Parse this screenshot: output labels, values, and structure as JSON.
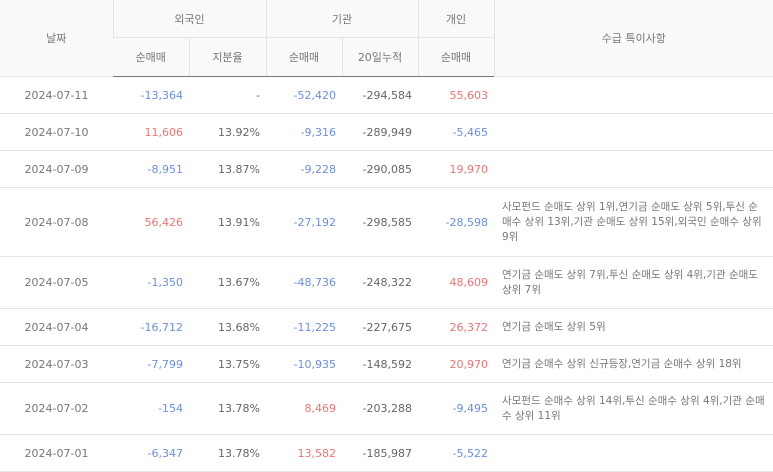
{
  "colors": {
    "negative": "#6b8fe0",
    "positive": "#ef7373"
  },
  "header": {
    "date": "날짜",
    "foreign": "외국인",
    "institution": "기관",
    "individual": "개인",
    "notes": "수급 특이사항",
    "net_buy": "순매매",
    "share_ratio": "지분율",
    "cumulative_20d": "20일누적"
  },
  "rows": [
    {
      "date": "2024-07-11",
      "foreign_net": "-13,364",
      "foreign_ratio": "-",
      "inst_net": "-52,420",
      "inst_cum": "-294,584",
      "indiv_net": "55,603",
      "note": ""
    },
    {
      "date": "2024-07-10",
      "foreign_net": "11,606",
      "foreign_ratio": "13.92%",
      "inst_net": "-9,316",
      "inst_cum": "-289,949",
      "indiv_net": "-5,465",
      "note": ""
    },
    {
      "date": "2024-07-09",
      "foreign_net": "-8,951",
      "foreign_ratio": "13.87%",
      "inst_net": "-9,228",
      "inst_cum": "-290,085",
      "indiv_net": "19,970",
      "note": ""
    },
    {
      "date": "2024-07-08",
      "foreign_net": "56,426",
      "foreign_ratio": "13.91%",
      "inst_net": "-27,192",
      "inst_cum": "-298,585",
      "indiv_net": "-28,598",
      "note": "사모펀드 순매도 상위 1위,연기금 순매도 상위 5위,투신 순매수 상위 13위,기관 순매도 상위 15위,외국인 순매수 상위 9위"
    },
    {
      "date": "2024-07-05",
      "foreign_net": "-1,350",
      "foreign_ratio": "13.67%",
      "inst_net": "-48,736",
      "inst_cum": "-248,322",
      "indiv_net": "48,609",
      "note": "연기금 순매도 상위 7위,투신 순매도 상위 4위,기관 순매도 상위 7위"
    },
    {
      "date": "2024-07-04",
      "foreign_net": "-16,712",
      "foreign_ratio": "13.68%",
      "inst_net": "-11,225",
      "inst_cum": "-227,675",
      "indiv_net": "26,372",
      "note": "연기금 순매도 상위 5위"
    },
    {
      "date": "2024-07-03",
      "foreign_net": "-7,799",
      "foreign_ratio": "13.75%",
      "inst_net": "-10,935",
      "inst_cum": "-148,592",
      "indiv_net": "20,970",
      "note": "연기금 순매수 상위 신규등장,연기금 순매수 상위 18위"
    },
    {
      "date": "2024-07-02",
      "foreign_net": "-154",
      "foreign_ratio": "13.78%",
      "inst_net": "8,469",
      "inst_cum": "-203,288",
      "indiv_net": "-9,495",
      "note": "사모펀드 순매수 상위 14위,투신 순매수 상위 4위,기관 순매수 상위 11위"
    },
    {
      "date": "2024-07-01",
      "foreign_net": "-6,347",
      "foreign_ratio": "13.78%",
      "inst_net": "13,582",
      "inst_cum": "-185,987",
      "indiv_net": "-5,522",
      "note": ""
    }
  ]
}
